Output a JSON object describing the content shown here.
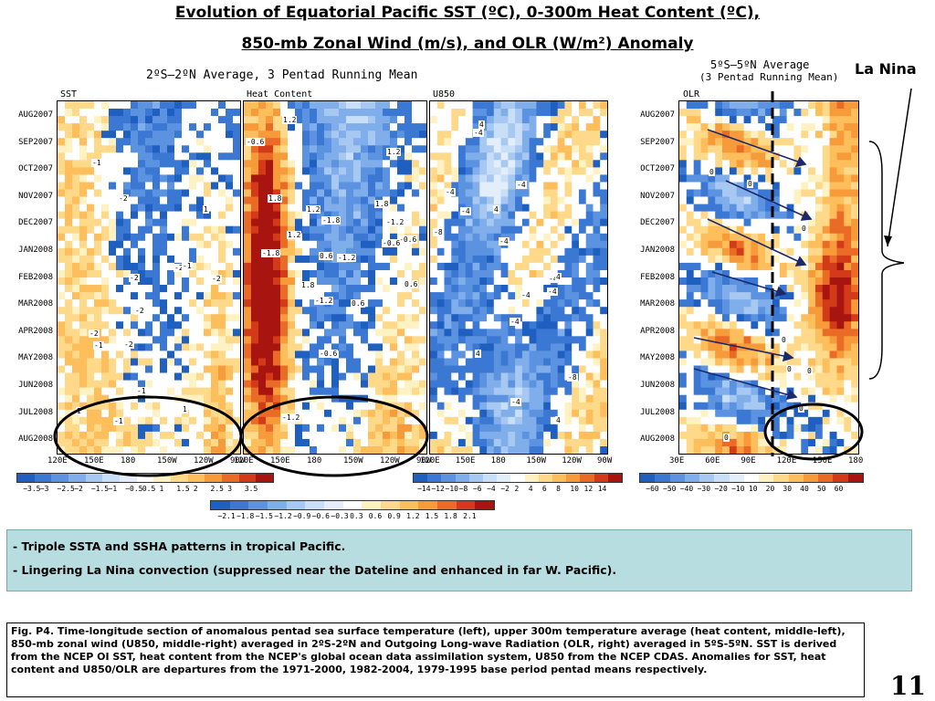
{
  "slide": {
    "title_line1": "Evolution of Equatorial Pacific SST (ºC), 0-300m Heat Content (ºC),",
    "title_line2": "850-mb Zonal Wind (m/s), and OLR (W/m²) Anomaly",
    "subtitle_left": "2ºS–2ºN Average, 3 Pentad Running Mean",
    "subtitle_right_1": "5ºS–5ºN Average",
    "subtitle_right_2": "(3 Pentad Running Mean)",
    "la_nina_label": "La Nina",
    "page_number": "11"
  },
  "bullets": [
    {
      "dash": "- ",
      "text": "Tripole SSTA and SSHA patterns in tropical Pacific."
    },
    {
      "dash": "- ",
      "text": "Lingering La Nina convection (suppressed near the Dateline and enhanced in far W. Pacific)."
    }
  ],
  "caption": "Fig. P4. Time-longitude section of anomalous pentad sea surface temperature (left), upper 300m temperature average (heat content, middle-left), 850-mb zonal wind (U850, middle-right) averaged in 2ºS-2ºN and Outgoing Long-wave Radiation (OLR, right) averaged in 5ºS-5ºN. SST is derived from the NCEP OI SST, heat content from the NCEP's global ocean data assimilation system, U850 from the NCEP CDAS. Anomalies for SST, heat content and U850/OLR are departures from the 1971-2000, 1982-2004, 1979-1995 base period pentad means respectively.",
  "chart_data": [
    {
      "type": "heatmap",
      "title": "SST",
      "y_tick_labels": [
        "AUG2007",
        "SEP2007",
        "OCT2007",
        "NOV2007",
        "DEC2007",
        "JAN2008",
        "FEB2008",
        "MAR2008",
        "APR2008",
        "MAY2008",
        "JUN2008",
        "JUL2008",
        "AUG2008"
      ],
      "x_tick_labels": [
        "120E",
        "150E",
        "180",
        "150W",
        "120W",
        "90W"
      ],
      "colorbar_ticks": [
        "−3.5",
        "−3",
        "−2.5",
        "−2",
        "−1.5",
        "−1",
        "−0.5",
        "0.5",
        "1",
        "1.5",
        "2",
        "2.5",
        "3",
        "3.5"
      ],
      "contour_labels": [
        "-2",
        "1",
        "-1",
        "-2",
        "-1",
        "-2",
        "-2",
        "-2",
        "-2",
        "-2",
        "-1",
        "-1",
        "-1",
        "1",
        "1"
      ]
    },
    {
      "type": "heatmap",
      "title": "Heat Content",
      "x_tick_labels": [
        "120E",
        "150E",
        "180",
        "150W",
        "120W",
        "90W"
      ],
      "colorbar_ticks": [
        "−2.1",
        "−1.8",
        "−1.5",
        "−1.2",
        "−0.9",
        "−0.6",
        "−0.3",
        "0.3",
        "0.6",
        "0.9",
        "1.2",
        "1.5",
        "1.8",
        "2.1"
      ],
      "contour_labels": [
        "-0.6",
        "-1.2",
        "-1.8",
        "-1.2",
        "1.2",
        "-0.6",
        "-1.2",
        "1.2",
        "1.8",
        "1.8",
        "1.2",
        "-1.8",
        "-1.2",
        "-0.6",
        "1.8",
        "1.2",
        "0.6",
        "0.6",
        "0.6",
        "-0.6"
      ]
    },
    {
      "type": "heatmap",
      "title": "U850",
      "x_tick_labels": [
        "120E",
        "150E",
        "180",
        "150W",
        "120W",
        "90W"
      ],
      "colorbar_ticks": [
        "−14",
        "−12",
        "−10",
        "−8",
        "−6",
        "−4",
        "−2",
        "2",
        "4",
        "6",
        "8",
        "10",
        "12",
        "14"
      ],
      "contour_labels": [
        "-4",
        "-4",
        "-4",
        "-4",
        "4",
        "-4",
        "-8",
        "-4",
        "-8",
        "-4",
        "4",
        "-4",
        "4",
        "4",
        "-4",
        "-4",
        "4"
      ]
    },
    {
      "type": "heatmap",
      "title": "OLR",
      "y_tick_labels": [
        "AUG2007",
        "SEP2007",
        "OCT2007",
        "NOV2007",
        "DEC2007",
        "JAN2008",
        "FEB2008",
        "MAR2008",
        "APR2008",
        "MAY2008",
        "JUN2008",
        "JUL2008",
        "AUG2008"
      ],
      "x_tick_labels": [
        "30E",
        "60E",
        "90E",
        "120E",
        "150E",
        "180"
      ],
      "colorbar_ticks": [
        "−60",
        "−50",
        "−40",
        "−30",
        "−20",
        "−10",
        "10",
        "20",
        "30",
        "40",
        "50",
        "60"
      ],
      "contour_labels": [
        "0",
        "0",
        "0",
        "0",
        "0",
        "0",
        "0",
        "0"
      ]
    }
  ],
  "colors": {
    "neg": [
      "#1f5fbf",
      "#3a78d4",
      "#5c93e0",
      "#80aeea",
      "#a6c8f1",
      "#c9def7",
      "#e4eefb"
    ],
    "pos": [
      "#fff2c2",
      "#ffd98a",
      "#ffbe5c",
      "#f79a3a",
      "#ea6b26",
      "#d23a1a",
      "#a81410"
    ],
    "bullet_bg": "#b7dde0"
  }
}
